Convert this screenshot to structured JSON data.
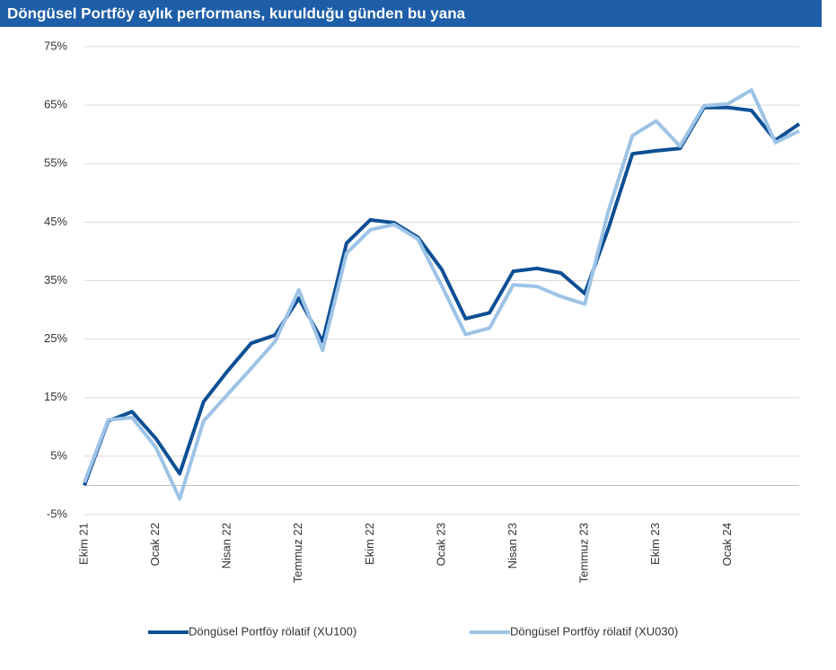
{
  "chart_data": {
    "type": "line",
    "title": "Döngüsel Portföy aylık performans, kurulduğu günden bu yana",
    "categories": [
      "Ekim 21",
      null,
      null,
      "Ocak 22",
      null,
      null,
      "Nisan 22",
      null,
      null,
      "Temmuz 22",
      null,
      null,
      "Ekim 22",
      null,
      null,
      "Ocak 23",
      null,
      null,
      "Nisan 23",
      null,
      null,
      "Temmuz 23",
      null,
      null,
      "Ekim 23",
      null,
      null,
      "Ocak 24",
      null,
      null,
      null
    ],
    "series": [
      {
        "name": "Döngüsel Portföy rölatif (XU100)",
        "color": "#0d4f94",
        "values": [
          0,
          11,
          12.6,
          8,
          2,
          14.3,
          19.5,
          24.3,
          25.7,
          32,
          24.6,
          41.4,
          45.4,
          44.9,
          42.4,
          36.9,
          28.5,
          29.5,
          36.6,
          37.1,
          36.3,
          32.8,
          44,
          56.7,
          57.2,
          57.6,
          64.6,
          64.6,
          64.1,
          59,
          61.8
        ]
      },
      {
        "name": "Döngüsel Portföy rölatif (XU030)",
        "color": "#9dc3e6",
        "values": [
          0.5,
          11.2,
          11.6,
          6.5,
          -2.3,
          11,
          15.5,
          20,
          24.6,
          33.4,
          23.1,
          39.7,
          43.7,
          44.6,
          42.1,
          34.1,
          25.8,
          26.9,
          34.3,
          34,
          32.3,
          31,
          47,
          59.8,
          62.3,
          58,
          64.9,
          65.2,
          67.6,
          58.6,
          60.6
        ]
      }
    ],
    "ylim": [
      -5,
      75
    ],
    "yticks": [
      {
        "value": -5,
        "label": "-5%"
      },
      {
        "value": 5,
        "label": "5%"
      },
      {
        "value": 15,
        "label": "15%"
      },
      {
        "value": 25,
        "label": "25%"
      },
      {
        "value": 35,
        "label": "35%"
      },
      {
        "value": 45,
        "label": "45%"
      },
      {
        "value": 55,
        "label": "55%"
      },
      {
        "value": 65,
        "label": "65%"
      },
      {
        "value": 75,
        "label": "75%"
      }
    ],
    "grid": true,
    "legend": "bottom"
  }
}
